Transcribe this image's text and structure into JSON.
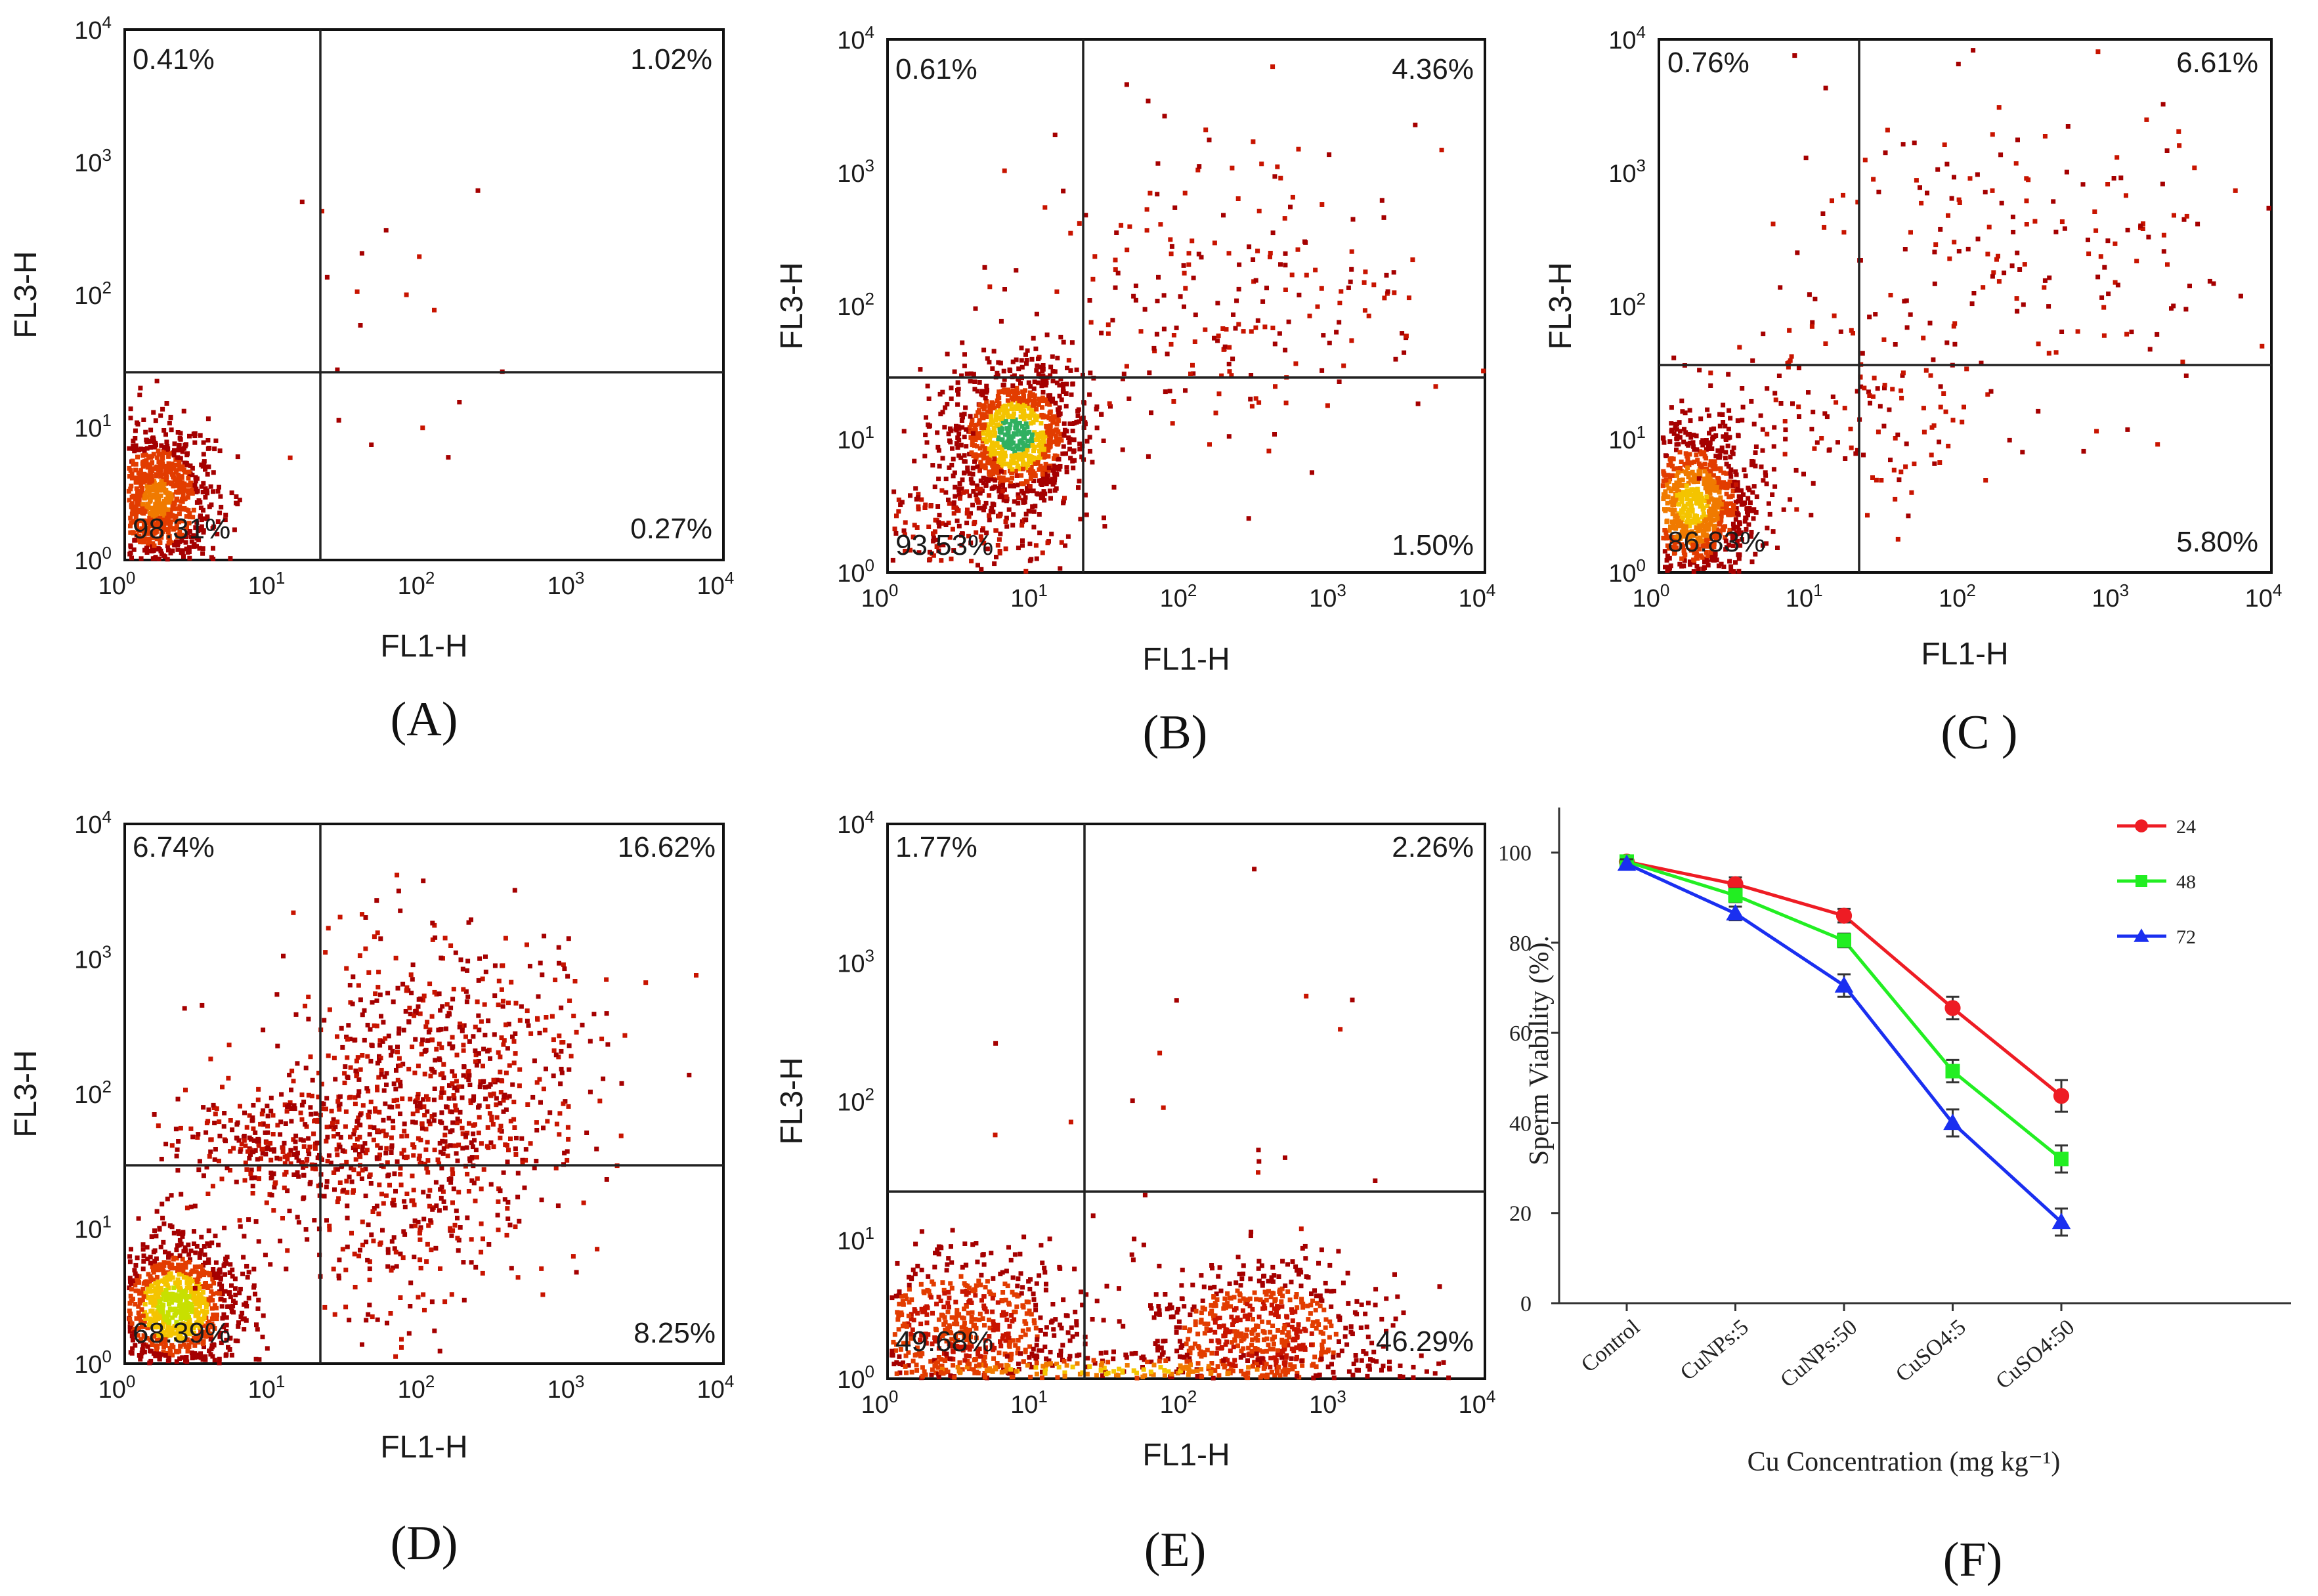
{
  "flow_common": {
    "x_axis_label": "FL1-H",
    "y_axis_label": "FL3-H",
    "tick_base": "10",
    "tick_exponents": [
      "0",
      "1",
      "2",
      "3",
      "4"
    ]
  },
  "panels": [
    {
      "id": "A",
      "label": "(A)",
      "q_ul": "0.41%",
      "q_ur": "1.02%",
      "q_ll": "98.31%",
      "q_lr": "0.27%"
    },
    {
      "id": "B",
      "label": "(B)",
      "q_ul": "0.61%",
      "q_ur": "4.36%",
      "q_ll": "93.53%",
      "q_lr": "1.50%"
    },
    {
      "id": "C",
      "label": "(C )",
      "q_ul": "0.76%",
      "q_ur": "6.61%",
      "q_ll": "86.83%",
      "q_lr": "5.80%"
    },
    {
      "id": "D",
      "label": "(D)",
      "q_ul": "6.74%",
      "q_ur": "16.62%",
      "q_ll": "68.39%",
      "q_lr": "8.25%"
    },
    {
      "id": "E",
      "label": "(E)",
      "q_ul": "1.77%",
      "q_ur": "2.26%",
      "q_ll": "49.68%",
      "q_lr": "46.29%"
    }
  ],
  "chart_data": {
    "type": "line",
    "panel_label": "(F)",
    "title": "",
    "xlabel": "Cu Concentration (mg kg⁻¹)",
    "ylabel": "Sperm Viability (%).",
    "categories": [
      "Control",
      "CuNPs:5",
      "CuNPs:50",
      "CuSO4:5",
      "CuSO4:50"
    ],
    "ylim": [
      0,
      110
    ],
    "yticks": [
      0,
      20,
      40,
      60,
      80,
      100
    ],
    "legend_position": "top-right",
    "series": [
      {
        "name": "24",
        "color": "#ee1c24",
        "marker": "circle",
        "values": [
          98,
          93,
          86,
          65.5,
          46
        ],
        "errors": [
          1,
          1.5,
          1.5,
          2.5,
          3.5
        ]
      },
      {
        "name": "48",
        "color": "#22ee22",
        "marker": "square",
        "values": [
          98,
          90.5,
          80.5,
          51.5,
          32
        ],
        "errors": [
          1,
          1.5,
          1.5,
          2.5,
          3
        ]
      },
      {
        "name": "72",
        "color": "#1a2ff0",
        "marker": "triangle",
        "values": [
          97.5,
          86.5,
          70.5,
          40,
          18
        ],
        "errors": [
          1,
          1.5,
          2.5,
          3,
          3
        ]
      }
    ]
  }
}
